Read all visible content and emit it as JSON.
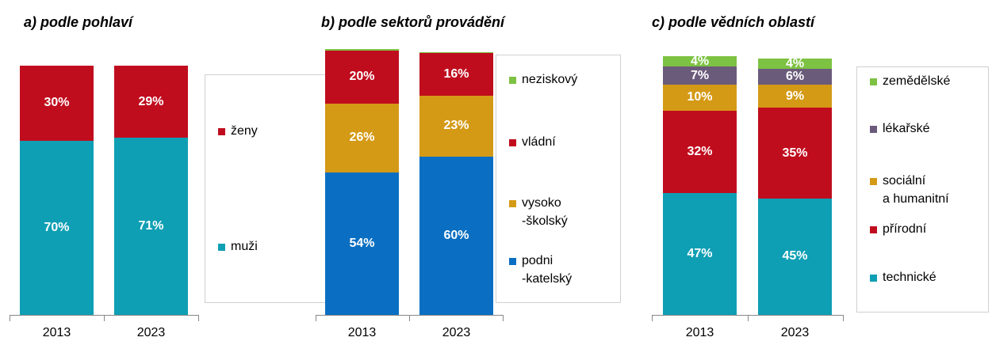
{
  "chart_data": [
    {
      "type": "bar",
      "stacked": true,
      "title": "a) podle pohlaví",
      "categories": [
        "2013",
        "2023"
      ],
      "ylim": [
        0,
        100
      ],
      "series": [
        {
          "name": "muži",
          "color": "#0f9fb4",
          "values": [
            70,
            71
          ],
          "value_labels": [
            "70%",
            "71%"
          ]
        },
        {
          "name": "ženy",
          "color": "#c00d1e",
          "values": [
            30,
            29
          ],
          "value_labels": [
            "30%",
            "29%"
          ]
        }
      ]
    },
    {
      "type": "bar",
      "stacked": true,
      "title": "b) podle sektorů provádění",
      "categories": [
        "2013",
        "2023"
      ],
      "ylim": [
        0,
        100
      ],
      "series": [
        {
          "name": "podni\n-katelský",
          "color": "#0a6fc2",
          "values": [
            54,
            60
          ],
          "value_labels": [
            "54%",
            "60%"
          ]
        },
        {
          "name": "vysoko\n-školský",
          "color": "#d49a16",
          "values": [
            26,
            23
          ],
          "value_labels": [
            "26%",
            "23%"
          ]
        },
        {
          "name": "vládní",
          "color": "#c00d1e",
          "values": [
            20,
            16
          ],
          "value_labels": [
            "20%",
            "16%"
          ]
        },
        {
          "name": "neziskový",
          "color": "#7dc242",
          "values": [
            0.5,
            0.5
          ],
          "value_labels": [
            null,
            null
          ]
        }
      ]
    },
    {
      "type": "bar",
      "stacked": true,
      "title": "c) podle vědních oblastí",
      "categories": [
        "2013",
        "2023"
      ],
      "ylim": [
        0,
        100
      ],
      "series": [
        {
          "name": "technické",
          "color": "#0f9fb4",
          "values": [
            47,
            45
          ],
          "value_labels": [
            "47%",
            "45%"
          ]
        },
        {
          "name": "přírodní",
          "color": "#c00d1e",
          "values": [
            32,
            35
          ],
          "value_labels": [
            "32%",
            "35%"
          ]
        },
        {
          "name": "sociální\na humanitní",
          "color": "#d49a16",
          "values": [
            10,
            9
          ],
          "value_labels": [
            "10%",
            "9%"
          ]
        },
        {
          "name": "lékařské",
          "color": "#6b5b7b",
          "values": [
            7,
            6
          ],
          "value_labels": [
            "7%",
            "6%"
          ]
        },
        {
          "name": "zemědělské",
          "color": "#7dc242",
          "values": [
            4,
            4
          ],
          "value_labels": [
            "4%",
            "4%"
          ]
        }
      ]
    }
  ]
}
